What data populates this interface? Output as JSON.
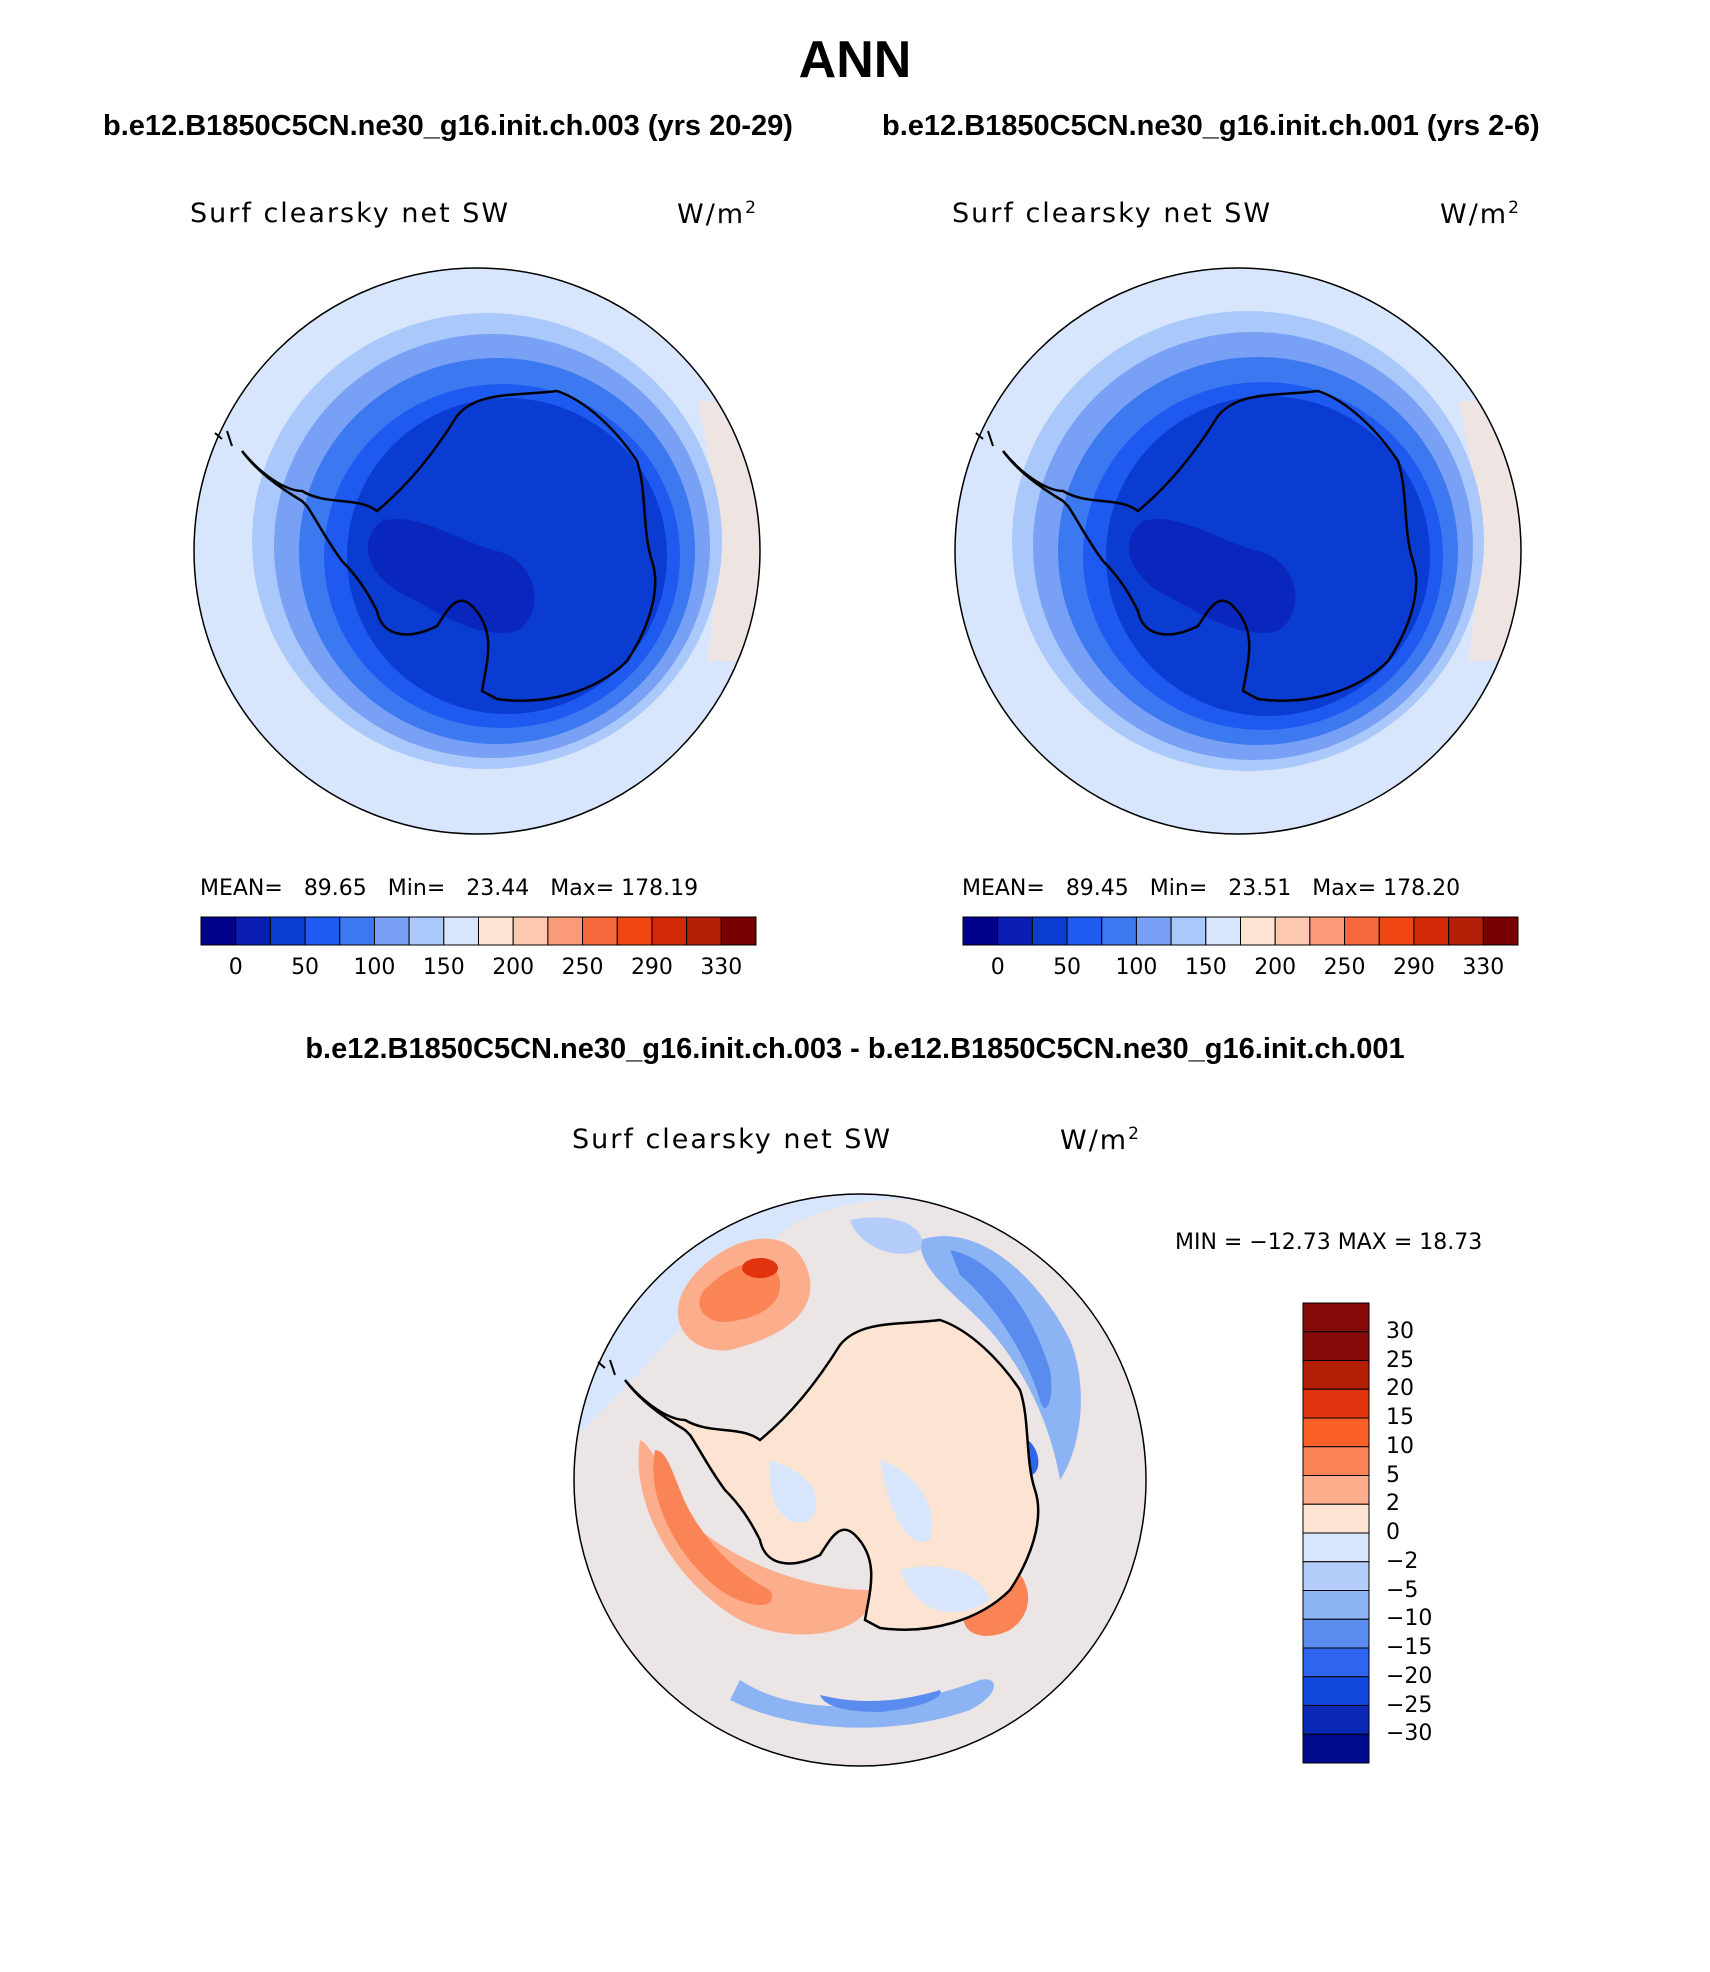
{
  "title": "ANN",
  "panels": {
    "left": {
      "case_title": "b.e12.B1850C5CN.ne30_g16.init.ch.003 (yrs 20-29)",
      "variable": "Surf clearsky net SW",
      "units": "W/m",
      "units_sup": "2",
      "mean_label": "MEAN=",
      "mean_value": "89.65",
      "min_label": "Min=",
      "min_value": "23.44",
      "max_label": "Max=",
      "max_value": "178.19"
    },
    "right": {
      "case_title": "b.e12.B1850C5CN.ne30_g16.init.ch.001 (yrs 2-6)",
      "variable": "Surf clearsky net SW",
      "units": "W/m",
      "units_sup": "2",
      "mean_label": "MEAN=",
      "mean_value": "89.45",
      "min_label": "Min=",
      "min_value": "23.51",
      "max_label": "Max=",
      "max_value": "178.20"
    },
    "diff": {
      "title": "b.e12.B1850C5CN.ne30_g16.init.ch.003 - b.e12.B1850C5CN.ne30_g16.init.ch.001",
      "variable": "Surf clearsky net SW",
      "units": "W/m",
      "units_sup": "2",
      "minmax_text": "MIN = −12.73 MAX =   18.73"
    }
  },
  "colorbar_main": {
    "colors": [
      "#00008b",
      "#0a1eb4",
      "#0a3cd2",
      "#1e5af0",
      "#3c78f0",
      "#78a0f5",
      "#aac8fa",
      "#d7e6fc",
      "#fde4d2",
      "#fcc8b0",
      "#fa9a78",
      "#f5693c",
      "#f04614",
      "#d22806",
      "#b41e06",
      "#780000"
    ],
    "tick_labels": [
      "0",
      "50",
      "100",
      "150",
      "200",
      "250",
      "290",
      "330"
    ]
  },
  "colorbar_diff": {
    "colors_top_to_bottom": [
      "#870a0a",
      "#b41e06",
      "#e0330e",
      "#fa5f28",
      "#fa8455",
      "#fcae8c",
      "#fde4d2",
      "#d7e6fc",
      "#b4cdfa",
      "#8cb4f5",
      "#5a8cf0",
      "#2d64f0",
      "#0f46dc",
      "#0a28b4",
      "#000a8c"
    ],
    "tick_labels": [
      "30",
      "25",
      "20",
      "15",
      "10",
      "5",
      "2",
      "0",
      "−2",
      "−5",
      "−10",
      "−15",
      "−20",
      "−25",
      "−30"
    ]
  }
}
